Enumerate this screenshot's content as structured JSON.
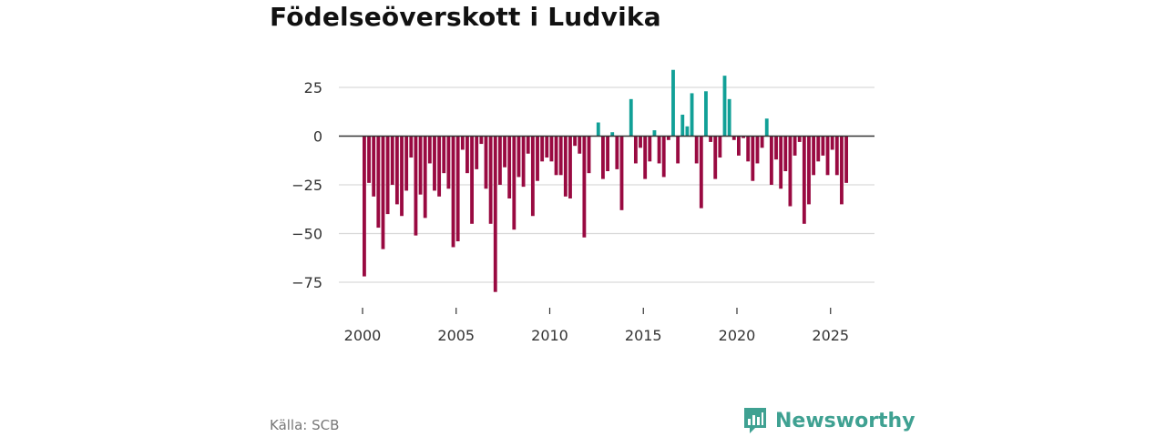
{
  "title": "Födelseöverskott i Ludvika",
  "source": "Källa: SCB",
  "brand": {
    "name": "Newsworthy",
    "icon": "newsworthy-logo-icon"
  },
  "colors": {
    "positive": "#11a097",
    "negative": "#990a41",
    "zero_line": "#333333",
    "grid": "#d9d9d9",
    "brand": "#3fa192"
  },
  "chart_data": {
    "type": "bar",
    "title": "Födelseöverskott i Ludvika",
    "xlabel": "",
    "ylabel": "",
    "xlim": [
      1999.5,
      2027.3
    ],
    "ylim": [
      -87,
      37
    ],
    "x_ticks": [
      2000,
      2005,
      2010,
      2015,
      2020,
      2025
    ],
    "x_tick_labels": [
      "2000",
      "2005",
      "2010",
      "2015",
      "2020",
      "2025"
    ],
    "y_ticks": [
      25,
      0,
      -25,
      -50,
      -75
    ],
    "y_tick_labels": [
      "25",
      "0",
      "−25",
      "−50",
      "−75"
    ],
    "x_start": 2000.0,
    "x_step": 0.25,
    "frequency": "quarterly",
    "values": [
      -72,
      -24,
      -31,
      -47,
      -58,
      -40,
      -25,
      -35,
      -41,
      -28,
      -11,
      -51,
      -30,
      -42,
      -14,
      -28,
      -31,
      -19,
      -27,
      -57,
      -54,
      -7,
      -19,
      -45,
      -17,
      -4,
      -27,
      -45,
      -80,
      -25,
      -16,
      -32,
      -48,
      -21,
      -26,
      -9,
      -41,
      -23,
      -13,
      -11,
      -13,
      -20,
      -20,
      -31,
      -32,
      -5,
      -9,
      -52,
      -19,
      0,
      7,
      -22,
      -18,
      2,
      -17,
      -38,
      0,
      19,
      -14,
      -6,
      -22,
      -13,
      3,
      -14,
      -21,
      -2,
      34,
      -14,
      11,
      5,
      22,
      -14,
      -37,
      23,
      -3,
      -22,
      -11,
      31,
      19,
      -2,
      -10,
      -1,
      -13,
      -23,
      -14,
      -6,
      9,
      -25,
      -12,
      -27,
      -18,
      -36,
      -10,
      -3,
      -45,
      -35,
      -20,
      -13,
      -10,
      -20,
      -7,
      -20,
      -35,
      -24
    ]
  }
}
